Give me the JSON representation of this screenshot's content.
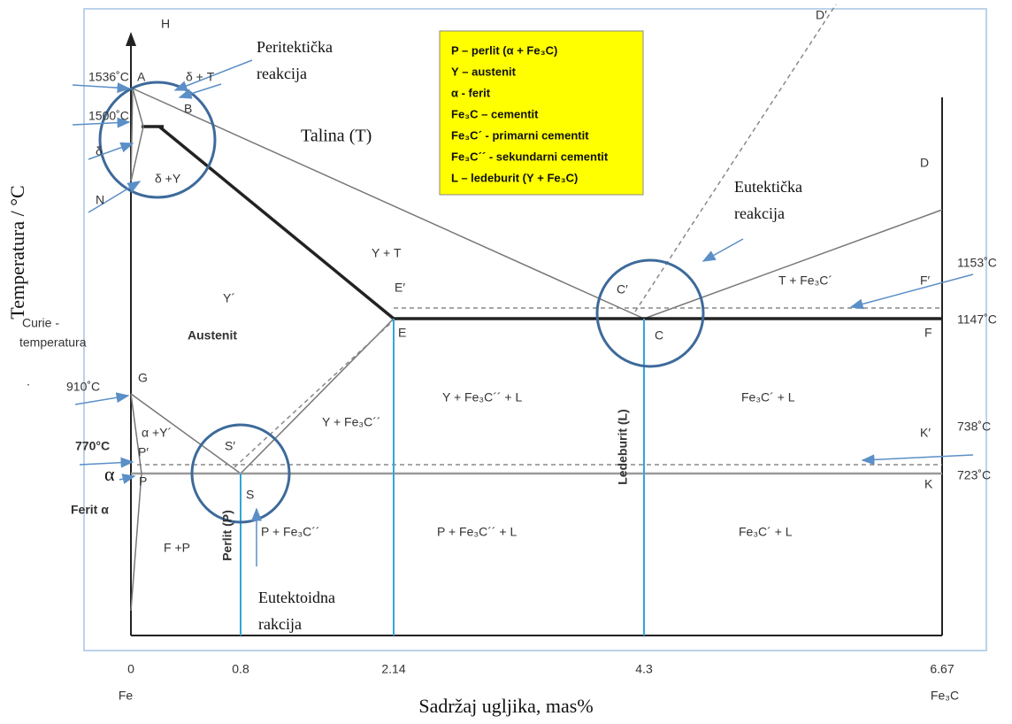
{
  "axes": {
    "y_label": "Temperatura / °C",
    "x_label": "Sadržaj ugljika, mas%",
    "x_ticks": [
      "0",
      "0.8",
      "2.14",
      "4.3",
      "6.67"
    ],
    "x_ends": [
      "Fe",
      "Fe₃C"
    ]
  },
  "temperatures": [
    "1536˚C",
    "1500˚C",
    "910˚C",
    "770°C",
    "1153˚C",
    "1147˚C",
    "738˚C",
    "723˚C"
  ],
  "points": [
    "H",
    "A",
    "B",
    "N",
    "D′",
    "D",
    "E′",
    "C′",
    "F′",
    "E",
    "C",
    "F",
    "G",
    "P′",
    "S′",
    "K′",
    "P",
    "K",
    "S"
  ],
  "regions": [
    "δ + T",
    "δ",
    "δ +Υ",
    "Talina (T)",
    "Υ + T",
    "T + Fe₃C´",
    "Υ´",
    "Austenit",
    "Υ + Fe₃C´´ + L",
    "Fe₃C´ + L",
    "α +Υ´",
    "Υ + Fe₃C´´",
    "α",
    "Ferit α",
    "P + Fe₃C´´",
    "P + Fe₃C´´ + L",
    "Fe₃C´ + L",
    "F +P",
    "Perlit (P)",
    "Ledeburit (L)"
  ],
  "notes": [
    "Peritektička",
    "reakcija",
    "Eutektička",
    "reakcija",
    "Curie -",
    "temperatura",
    "Eutektoidna",
    "rakcija",
    "."
  ],
  "legend": [
    "P – perlit (α + Fe₃C)",
    "Υ – austenit",
    "α  - ferit",
    "Fe₃C – cementit",
    "Fe₃C´ - primarni cementit",
    "Fe₃C´´ - sekundarni cementit",
    "L – ledeburit (Υ + Fe₃C)"
  ]
}
